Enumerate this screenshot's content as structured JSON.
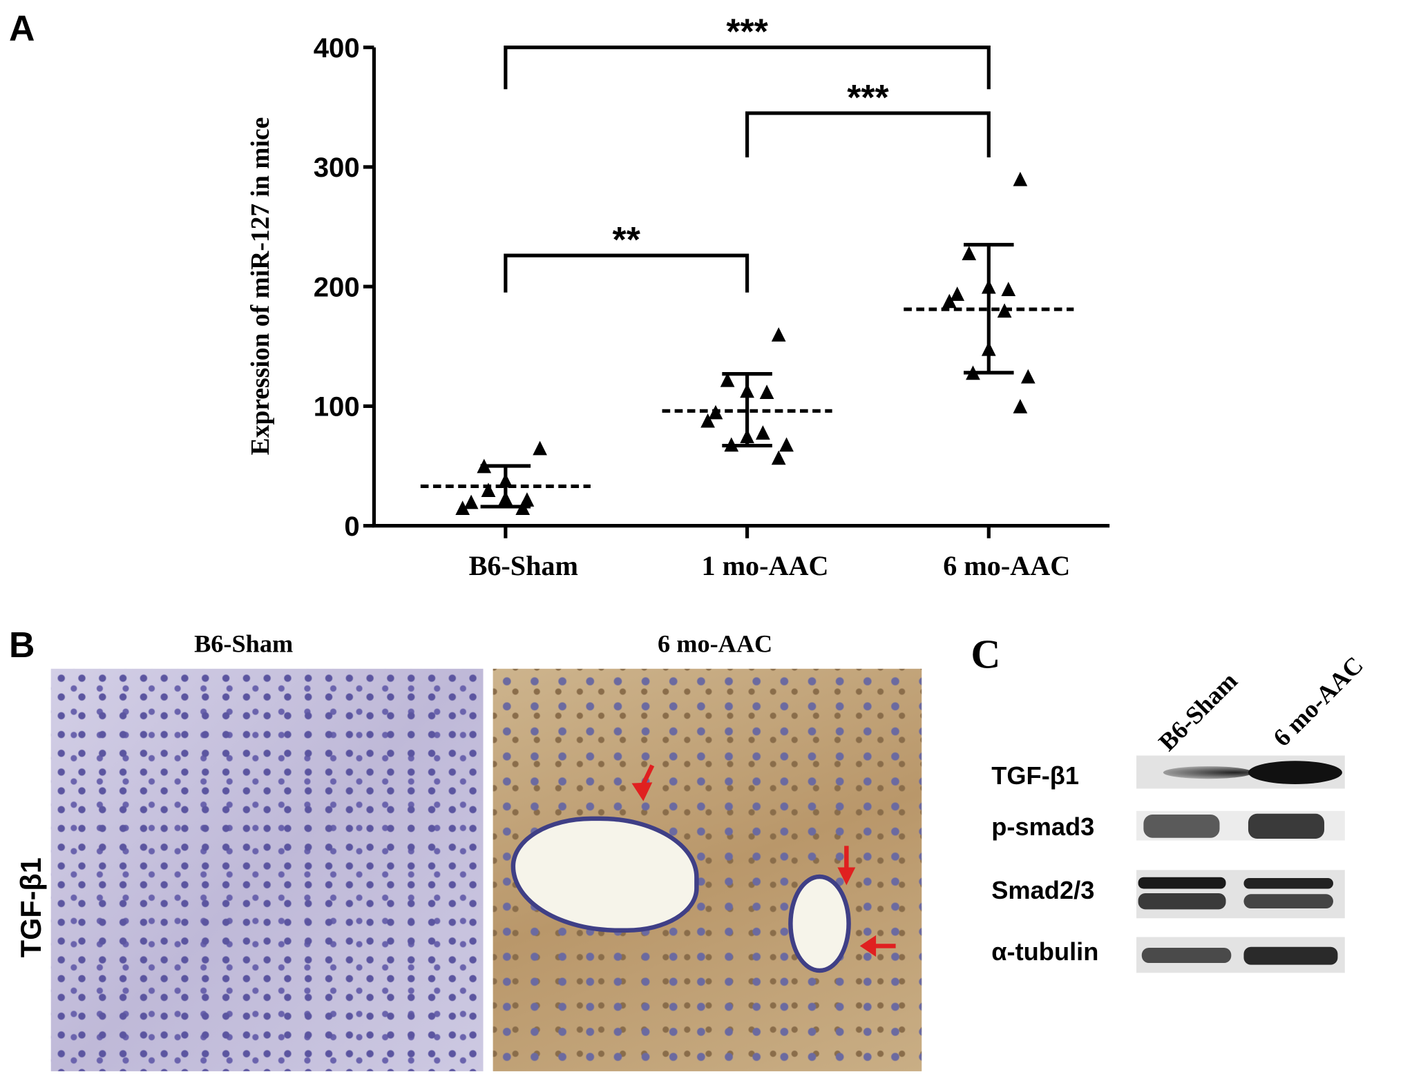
{
  "panels": {
    "a": {
      "letter": "A"
    },
    "b": {
      "letter": "B",
      "left_title": "B6-Sham",
      "right_title": "6 mo-AAC",
      "row_label": "TGF-β1"
    },
    "c": {
      "letter": "C",
      "lanes": [
        "B6-Sham",
        "6 mo-AAC"
      ],
      "rows": [
        "TGF-β1",
        "p-smad3",
        "Smad2/3",
        "α-tubulin"
      ]
    }
  },
  "chart_data": {
    "type": "scatter",
    "ylabel": "Expression of miR-127 in mice",
    "xlabel": "",
    "categories": [
      "B6-Sham",
      "1 mo-AAC",
      "6 mo-AAC"
    ],
    "ylim": [
      0,
      400
    ],
    "yticks": [
      "0",
      "100",
      "200",
      "300",
      "400"
    ],
    "marker": "triangle",
    "grid": false,
    "groups": [
      {
        "category": "B6-Sham",
        "points": [
          65,
          50,
          38,
          22,
          20,
          15,
          15,
          23,
          30
        ],
        "mean": 33,
        "sd_upper": 50,
        "sd_lower": 16
      },
      {
        "category": "1 mo-AAC",
        "points": [
          160,
          122,
          113,
          112,
          95,
          88,
          78,
          75,
          68,
          68,
          57
        ],
        "mean": 96,
        "sd_upper": 127,
        "sd_lower": 67
      },
      {
        "category": "6 mo-AAC",
        "points": [
          290,
          228,
          200,
          198,
          194,
          188,
          180,
          148,
          128,
          125,
          100
        ],
        "mean": 181,
        "sd_upper": 235,
        "sd_lower": 128
      }
    ],
    "significance": [
      {
        "from": "B6-Sham",
        "to": "6 mo-AAC",
        "label": "***",
        "y": 400,
        "left_drop": 365,
        "right_drop": 365
      },
      {
        "from": "1 mo-AAC",
        "to": "6 mo-AAC",
        "label": "***",
        "y": 345,
        "left_drop": 308,
        "right_drop": 308
      },
      {
        "from": "B6-Sham",
        "to": "1 mo-AAC",
        "label": "**",
        "y": 226,
        "left_drop": 195,
        "right_drop": 195
      }
    ]
  }
}
